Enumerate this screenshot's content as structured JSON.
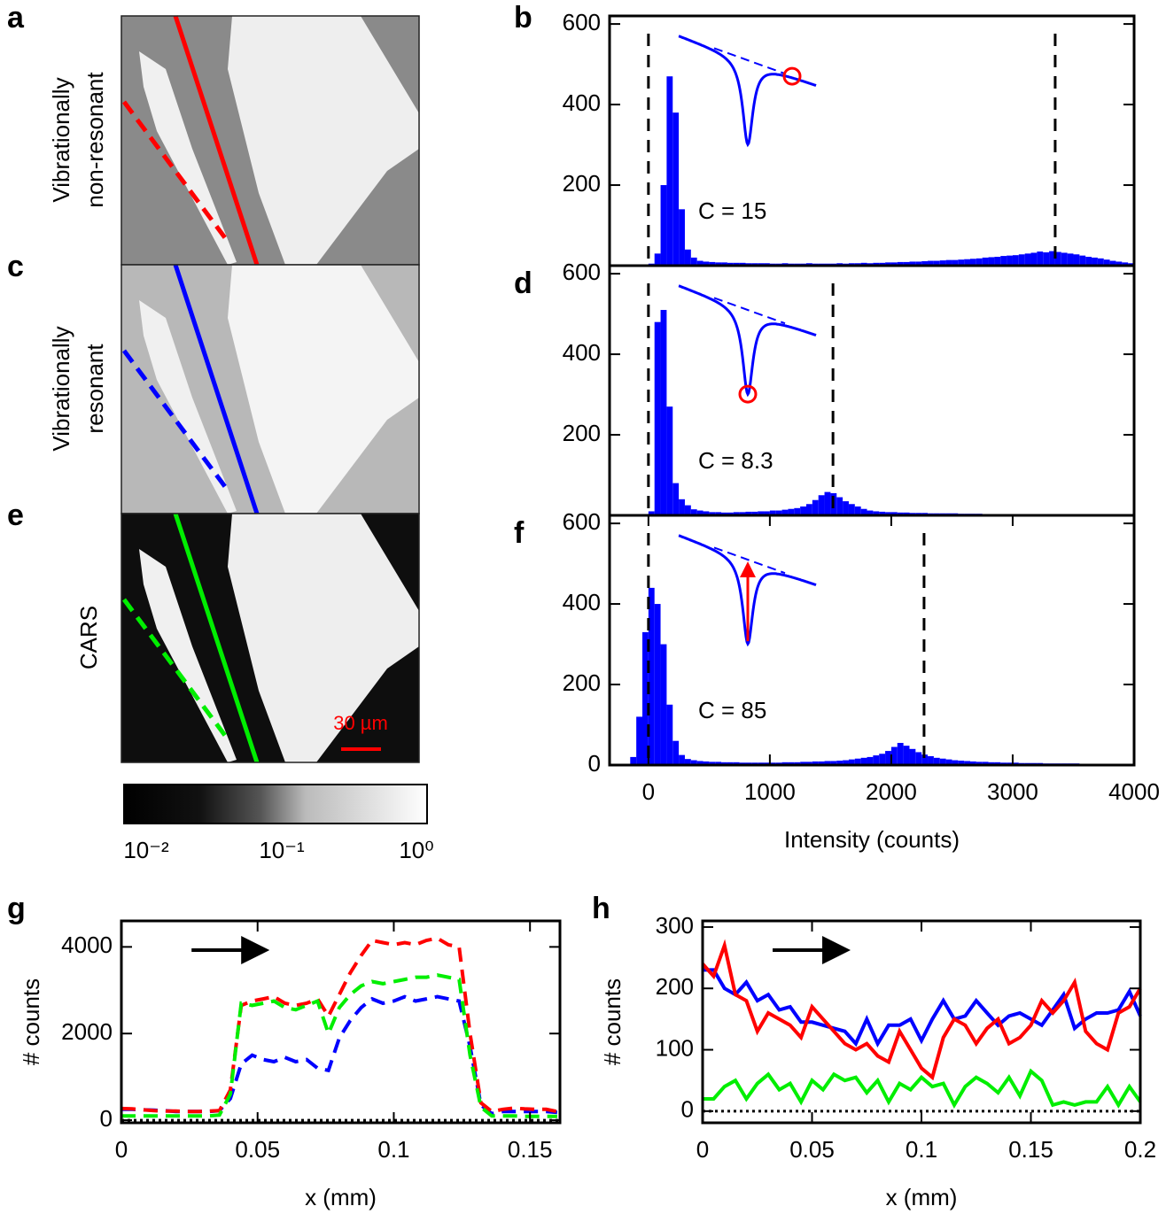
{
  "image_panels": [
    {
      "panel_label": "a",
      "label_lines": [
        "Vibrationally",
        "non-resonant"
      ]
    },
    {
      "panel_label": "c",
      "label_lines": [
        "Vibrationally",
        "resonant"
      ]
    },
    {
      "panel_label": "e",
      "label_lines": [
        "CARS"
      ],
      "scale_bar": "30 µm"
    }
  ],
  "colorbar": {
    "tick_labels": [
      "10⁻²",
      "10⁻¹",
      "10⁰"
    ]
  },
  "chart_data": [
    {
      "type": "histogram",
      "panel_label": "b",
      "color": "#0000ff",
      "xlim": [
        -320,
        4000
      ],
      "ylim": [
        0,
        620
      ],
      "yticks": [
        200,
        400,
        600
      ],
      "vlines": [
        0,
        3350
      ],
      "annotation": "C = 15",
      "bins": [
        -300,
        -250,
        -200,
        -150,
        -100,
        -50,
        0,
        50,
        100,
        150,
        200,
        250,
        300,
        350,
        400,
        450,
        500,
        550,
        600,
        650,
        700,
        750,
        800,
        850,
        900,
        950,
        1000,
        1050,
        1100,
        1150,
        1200,
        1250,
        1300,
        1350,
        1400,
        1450,
        1500,
        1550,
        1600,
        1650,
        1700,
        1750,
        1800,
        1850,
        1900,
        1950,
        2000,
        2050,
        2100,
        2150,
        2200,
        2250,
        2300,
        2350,
        2400,
        2450,
        2500,
        2550,
        2600,
        2650,
        2700,
        2750,
        2800,
        2850,
        2900,
        2950,
        3000,
        3050,
        3100,
        3150,
        3200,
        3250,
        3300,
        3350,
        3400,
        3450,
        3500,
        3550,
        3600,
        3650,
        3700,
        3750,
        3800,
        3850,
        3900,
        3950,
        4000
      ],
      "values": [
        0,
        0,
        0,
        0,
        0,
        0,
        5,
        30,
        200,
        470,
        380,
        140,
        40,
        20,
        12,
        10,
        9,
        8,
        8,
        7,
        7,
        7,
        6,
        6,
        6,
        6,
        5,
        5,
        6,
        5,
        5,
        5,
        6,
        5,
        5,
        5,
        5,
        6,
        5,
        6,
        6,
        7,
        6,
        7,
        7,
        8,
        8,
        9,
        9,
        10,
        10,
        11,
        12,
        12,
        13,
        14,
        14,
        15,
        16,
        17,
        18,
        20,
        21,
        22,
        24,
        25,
        26,
        28,
        30,
        32,
        35,
        33,
        36,
        34,
        32,
        30,
        28,
        25,
        22,
        20,
        18,
        15,
        12,
        10,
        8,
        6
      ]
    },
    {
      "type": "histogram",
      "panel_label": "d",
      "color": "#0000ff",
      "xlim": [
        -320,
        4000
      ],
      "ylim": [
        0,
        620
      ],
      "yticks": [
        200,
        400,
        600
      ],
      "vlines": [
        0,
        1520
      ],
      "annotation": "C = 8.3",
      "bins": [
        -300,
        -250,
        -200,
        -150,
        -100,
        -50,
        0,
        50,
        100,
        150,
        200,
        250,
        300,
        350,
        400,
        450,
        500,
        550,
        600,
        650,
        700,
        750,
        800,
        850,
        900,
        950,
        1000,
        1050,
        1100,
        1150,
        1200,
        1250,
        1300,
        1350,
        1400,
        1450,
        1500,
        1550,
        1600,
        1650,
        1700,
        1750,
        1800,
        1850,
        1900,
        1950,
        2000,
        2050,
        2100,
        2150,
        2200,
        2250,
        2300,
        2350,
        2400,
        2450,
        2500,
        2550,
        2600,
        2650,
        2700,
        2750,
        2800,
        2850,
        2900,
        2950,
        3000,
        3050,
        3100,
        3150,
        3200,
        3250,
        3300,
        3350,
        3400,
        3450,
        3500,
        3550,
        3600,
        3650,
        3700,
        3750,
        3800,
        3850,
        3900,
        3950,
        4000
      ],
      "values": [
        0,
        0,
        0,
        0,
        0,
        0,
        10,
        480,
        510,
        270,
        80,
        40,
        25,
        15,
        12,
        10,
        8,
        8,
        7,
        7,
        8,
        8,
        9,
        9,
        10,
        10,
        12,
        12,
        14,
        16,
        18,
        22,
        28,
        38,
        50,
        58,
        55,
        45,
        35,
        28,
        22,
        16,
        12,
        10,
        9,
        8,
        8,
        7,
        7,
        6,
        6,
        6,
        5,
        5,
        5,
        5,
        5,
        4,
        4,
        4,
        4,
        3,
        3,
        3,
        3,
        3,
        3,
        3,
        3,
        2,
        2,
        2,
        2,
        2,
        2,
        2,
        2,
        2,
        2,
        2,
        2,
        2,
        2,
        2,
        2,
        2
      ]
    },
    {
      "type": "histogram",
      "panel_label": "f",
      "color": "#0000ff",
      "xlim": [
        -320,
        4000
      ],
      "ylim": [
        0,
        620
      ],
      "yticks": [
        0,
        200,
        400,
        600
      ],
      "xticks": [
        0,
        1000,
        2000,
        3000,
        4000
      ],
      "xlabel": "Intensity (counts)",
      "vlines": [
        0,
        2270
      ],
      "annotation": "C = 85",
      "bins": [
        -300,
        -250,
        -200,
        -150,
        -100,
        -50,
        0,
        50,
        100,
        150,
        200,
        250,
        300,
        350,
        400,
        450,
        500,
        550,
        600,
        650,
        700,
        750,
        800,
        850,
        900,
        950,
        1000,
        1050,
        1100,
        1150,
        1200,
        1250,
        1300,
        1350,
        1400,
        1450,
        1500,
        1550,
        1600,
        1650,
        1700,
        1750,
        1800,
        1850,
        1900,
        1950,
        2000,
        2050,
        2100,
        2150,
        2200,
        2250,
        2300,
        2350,
        2400,
        2450,
        2500,
        2550,
        2600,
        2650,
        2700,
        2750,
        2800,
        2850,
        2900,
        2950,
        3000,
        3050,
        3100,
        3150,
        3200,
        3250,
        3300,
        3350,
        3400,
        3450,
        3500,
        3550,
        3600,
        3650,
        3700,
        3750,
        3800,
        3850,
        3900,
        3950,
        4000
      ],
      "values": [
        0,
        0,
        3,
        20,
        120,
        330,
        440,
        400,
        300,
        150,
        60,
        25,
        15,
        12,
        10,
        9,
        8,
        8,
        7,
        7,
        7,
        6,
        6,
        6,
        6,
        6,
        6,
        6,
        7,
        7,
        7,
        8,
        8,
        9,
        9,
        10,
        10,
        11,
        12,
        14,
        16,
        18,
        20,
        24,
        28,
        35,
        45,
        55,
        48,
        40,
        32,
        26,
        22,
        18,
        16,
        14,
        12,
        11,
        10,
        9,
        8,
        8,
        7,
        7,
        6,
        6,
        6,
        5,
        5,
        5,
        5,
        4,
        4,
        4,
        4,
        4,
        4,
        3,
        3,
        3,
        3,
        3,
        3,
        3,
        3,
        3
      ]
    },
    {
      "type": "line",
      "panel_label": "g",
      "linestyle": "dashed",
      "xlim": [
        0,
        0.161
      ],
      "ylim": [
        -60,
        4600
      ],
      "xticks": [
        0,
        0.05,
        0.1,
        0.15
      ],
      "yticks": [
        0,
        2000,
        4000
      ],
      "xlabel": "x (mm)",
      "ylabel": "# counts",
      "hline": 0,
      "x": [
        0,
        0.004,
        0.008,
        0.012,
        0.016,
        0.02,
        0.024,
        0.028,
        0.032,
        0.036,
        0.04,
        0.044,
        0.048,
        0.052,
        0.056,
        0.06,
        0.064,
        0.068,
        0.072,
        0.076,
        0.08,
        0.084,
        0.088,
        0.092,
        0.096,
        0.1,
        0.104,
        0.108,
        0.112,
        0.116,
        0.12,
        0.124,
        0.128,
        0.132,
        0.136,
        0.14,
        0.144,
        0.148,
        0.152,
        0.156,
        0.16
      ],
      "series": [
        {
          "color": "#0000ff",
          "values": [
            250,
            250,
            240,
            230,
            220,
            200,
            200,
            200,
            200,
            220,
            500,
            1300,
            1500,
            1400,
            1350,
            1450,
            1350,
            1400,
            1200,
            1150,
            1900,
            2300,
            2600,
            2800,
            2700,
            2750,
            2850,
            2750,
            2800,
            2850,
            2800,
            2750,
            1700,
            350,
            150,
            200,
            200,
            200,
            200,
            200,
            180
          ]
        },
        {
          "color": "#ff0000",
          "values": [
            270,
            260,
            240,
            220,
            210,
            210,
            200,
            200,
            210,
            220,
            700,
            2650,
            2750,
            2800,
            2850,
            2700,
            2650,
            2700,
            2800,
            2400,
            2900,
            3400,
            3800,
            4150,
            4100,
            4050,
            4100,
            4050,
            4150,
            4200,
            4050,
            4000,
            2000,
            400,
            200,
            250,
            280,
            260,
            250,
            250,
            200
          ]
        },
        {
          "color": "#00ee00",
          "values": [
            100,
            100,
            100,
            100,
            100,
            100,
            100,
            100,
            100,
            120,
            600,
            2700,
            2650,
            2700,
            2750,
            2600,
            2550,
            2650,
            2750,
            2000,
            2600,
            2900,
            3100,
            3200,
            3150,
            3200,
            3250,
            3300,
            3300,
            3350,
            3300,
            3250,
            1500,
            300,
            100,
            100,
            100,
            90,
            90,
            90,
            90
          ]
        }
      ]
    },
    {
      "type": "line",
      "panel_label": "h",
      "linestyle": "solid",
      "xlim": [
        0,
        0.2
      ],
      "ylim": [
        -19,
        310
      ],
      "xticks": [
        0,
        0.05,
        0.1,
        0.15,
        0.2
      ],
      "yticks": [
        0,
        100,
        200,
        300
      ],
      "xlabel": "x (mm)",
      "ylabel": "# counts",
      "hline": 0,
      "x": [
        0,
        0.005,
        0.01,
        0.015,
        0.02,
        0.025,
        0.03,
        0.035,
        0.04,
        0.045,
        0.05,
        0.055,
        0.06,
        0.065,
        0.07,
        0.075,
        0.08,
        0.085,
        0.09,
        0.095,
        0.1,
        0.105,
        0.11,
        0.115,
        0.12,
        0.125,
        0.13,
        0.135,
        0.14,
        0.145,
        0.15,
        0.155,
        0.16,
        0.165,
        0.17,
        0.175,
        0.18,
        0.185,
        0.19,
        0.195,
        0.2
      ],
      "series": [
        {
          "color": "#00ee00",
          "values": [
            20,
            20,
            40,
            50,
            20,
            45,
            60,
            35,
            45,
            15,
            50,
            35,
            60,
            50,
            55,
            30,
            50,
            15,
            45,
            35,
            55,
            40,
            45,
            10,
            40,
            55,
            45,
            30,
            55,
            25,
            65,
            50,
            10,
            15,
            10,
            15,
            15,
            40,
            10,
            40,
            15
          ]
        },
        {
          "color": "#0000ff",
          "values": [
            230,
            230,
            200,
            190,
            210,
            180,
            190,
            165,
            170,
            145,
            145,
            140,
            135,
            130,
            110,
            150,
            110,
            140,
            140,
            150,
            115,
            150,
            180,
            150,
            155,
            180,
            160,
            140,
            155,
            160,
            150,
            140,
            165,
            190,
            135,
            150,
            160,
            160,
            165,
            195,
            155
          ]
        },
        {
          "color": "#ff0000",
          "values": [
            240,
            220,
            270,
            190,
            180,
            130,
            160,
            150,
            140,
            120,
            170,
            150,
            130,
            110,
            100,
            110,
            90,
            80,
            130,
            100,
            70,
            55,
            120,
            150,
            140,
            110,
            135,
            150,
            110,
            120,
            140,
            180,
            160,
            180,
            210,
            130,
            110,
            100,
            160,
            170,
            200
          ]
        }
      ]
    }
  ]
}
